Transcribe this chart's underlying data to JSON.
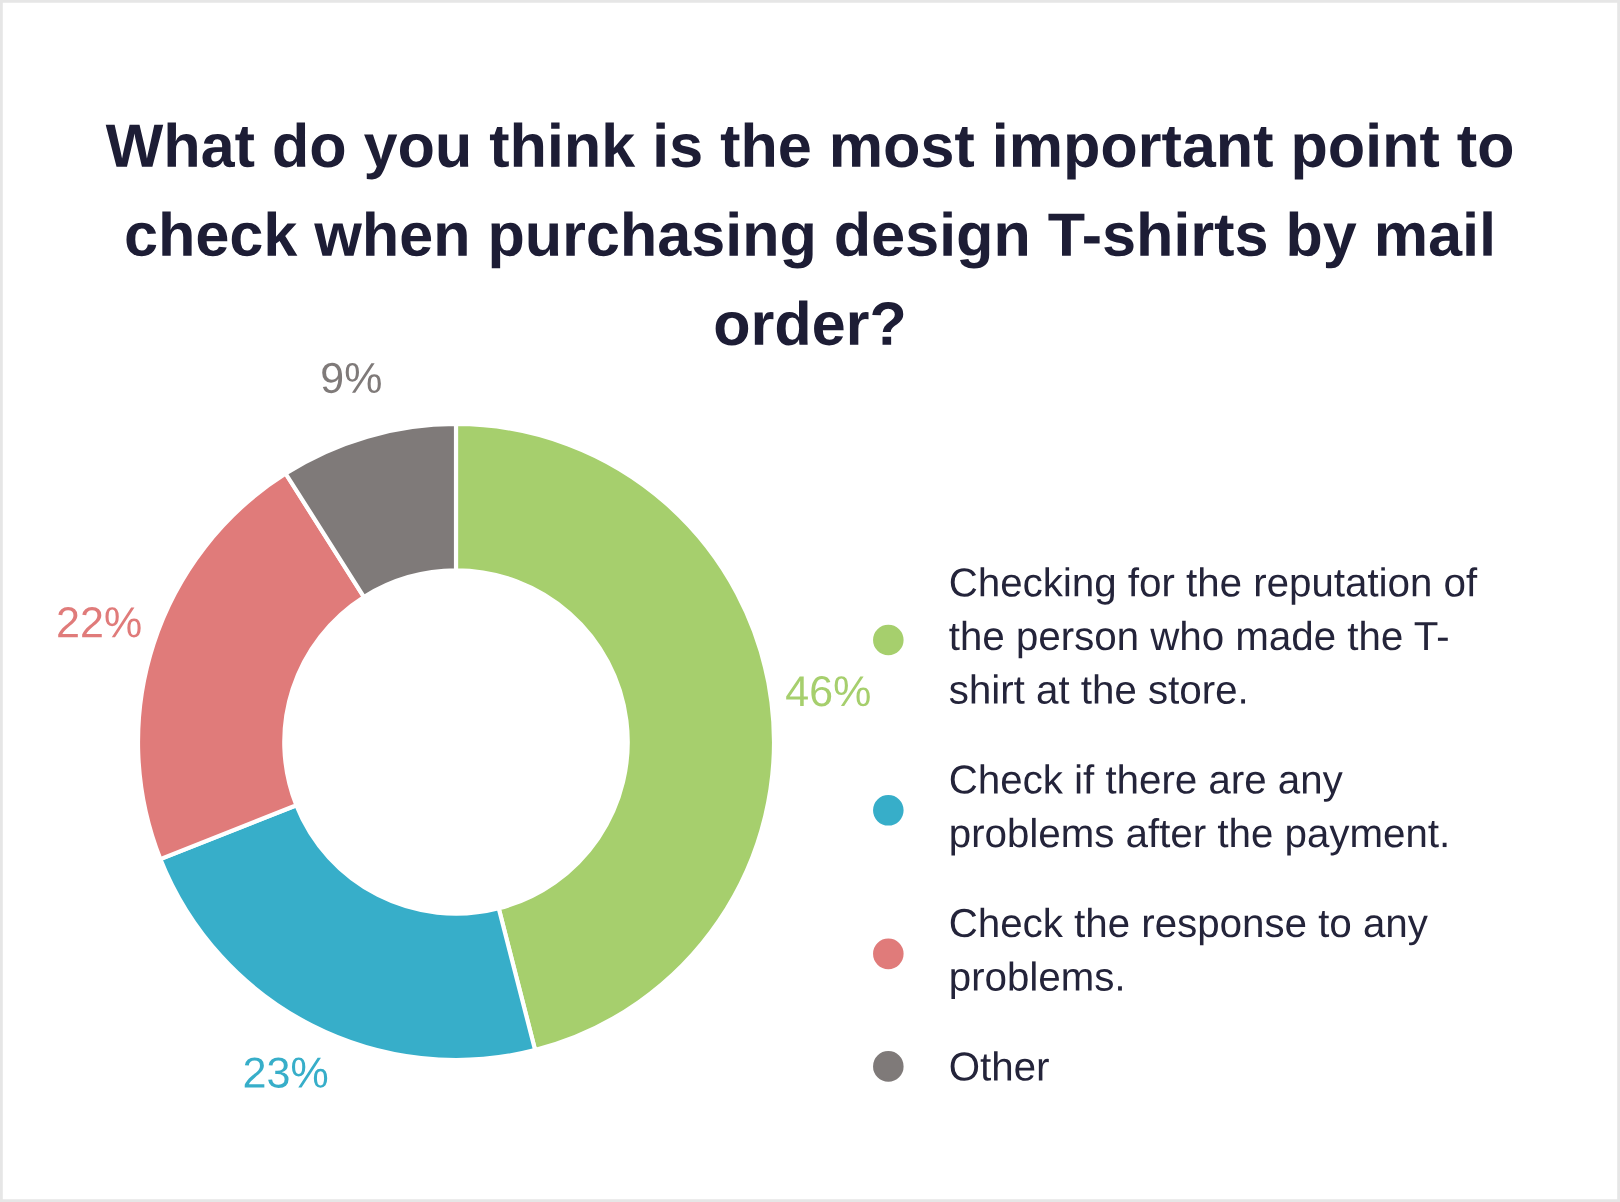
{
  "chart_data": {
    "type": "donut",
    "title": "What do you think is the most important point to\ncheck when purchasing design T-shirts by mail\norder?",
    "categories": [
      "Checking for the reputation of\nthe person who made the T-\nshirt at the store.",
      "Check if there are any\nproblems after the payment.",
      "Check the response to any\nproblems.",
      "Other"
    ],
    "values": [
      46,
      23,
      22,
      9
    ],
    "colors": [
      "#a6cf6d",
      "#37aec9",
      "#e07b7a",
      "#7f7a79"
    ],
    "value_labels": [
      "46%",
      "23%",
      "22%",
      "9%"
    ],
    "legend": "right"
  }
}
